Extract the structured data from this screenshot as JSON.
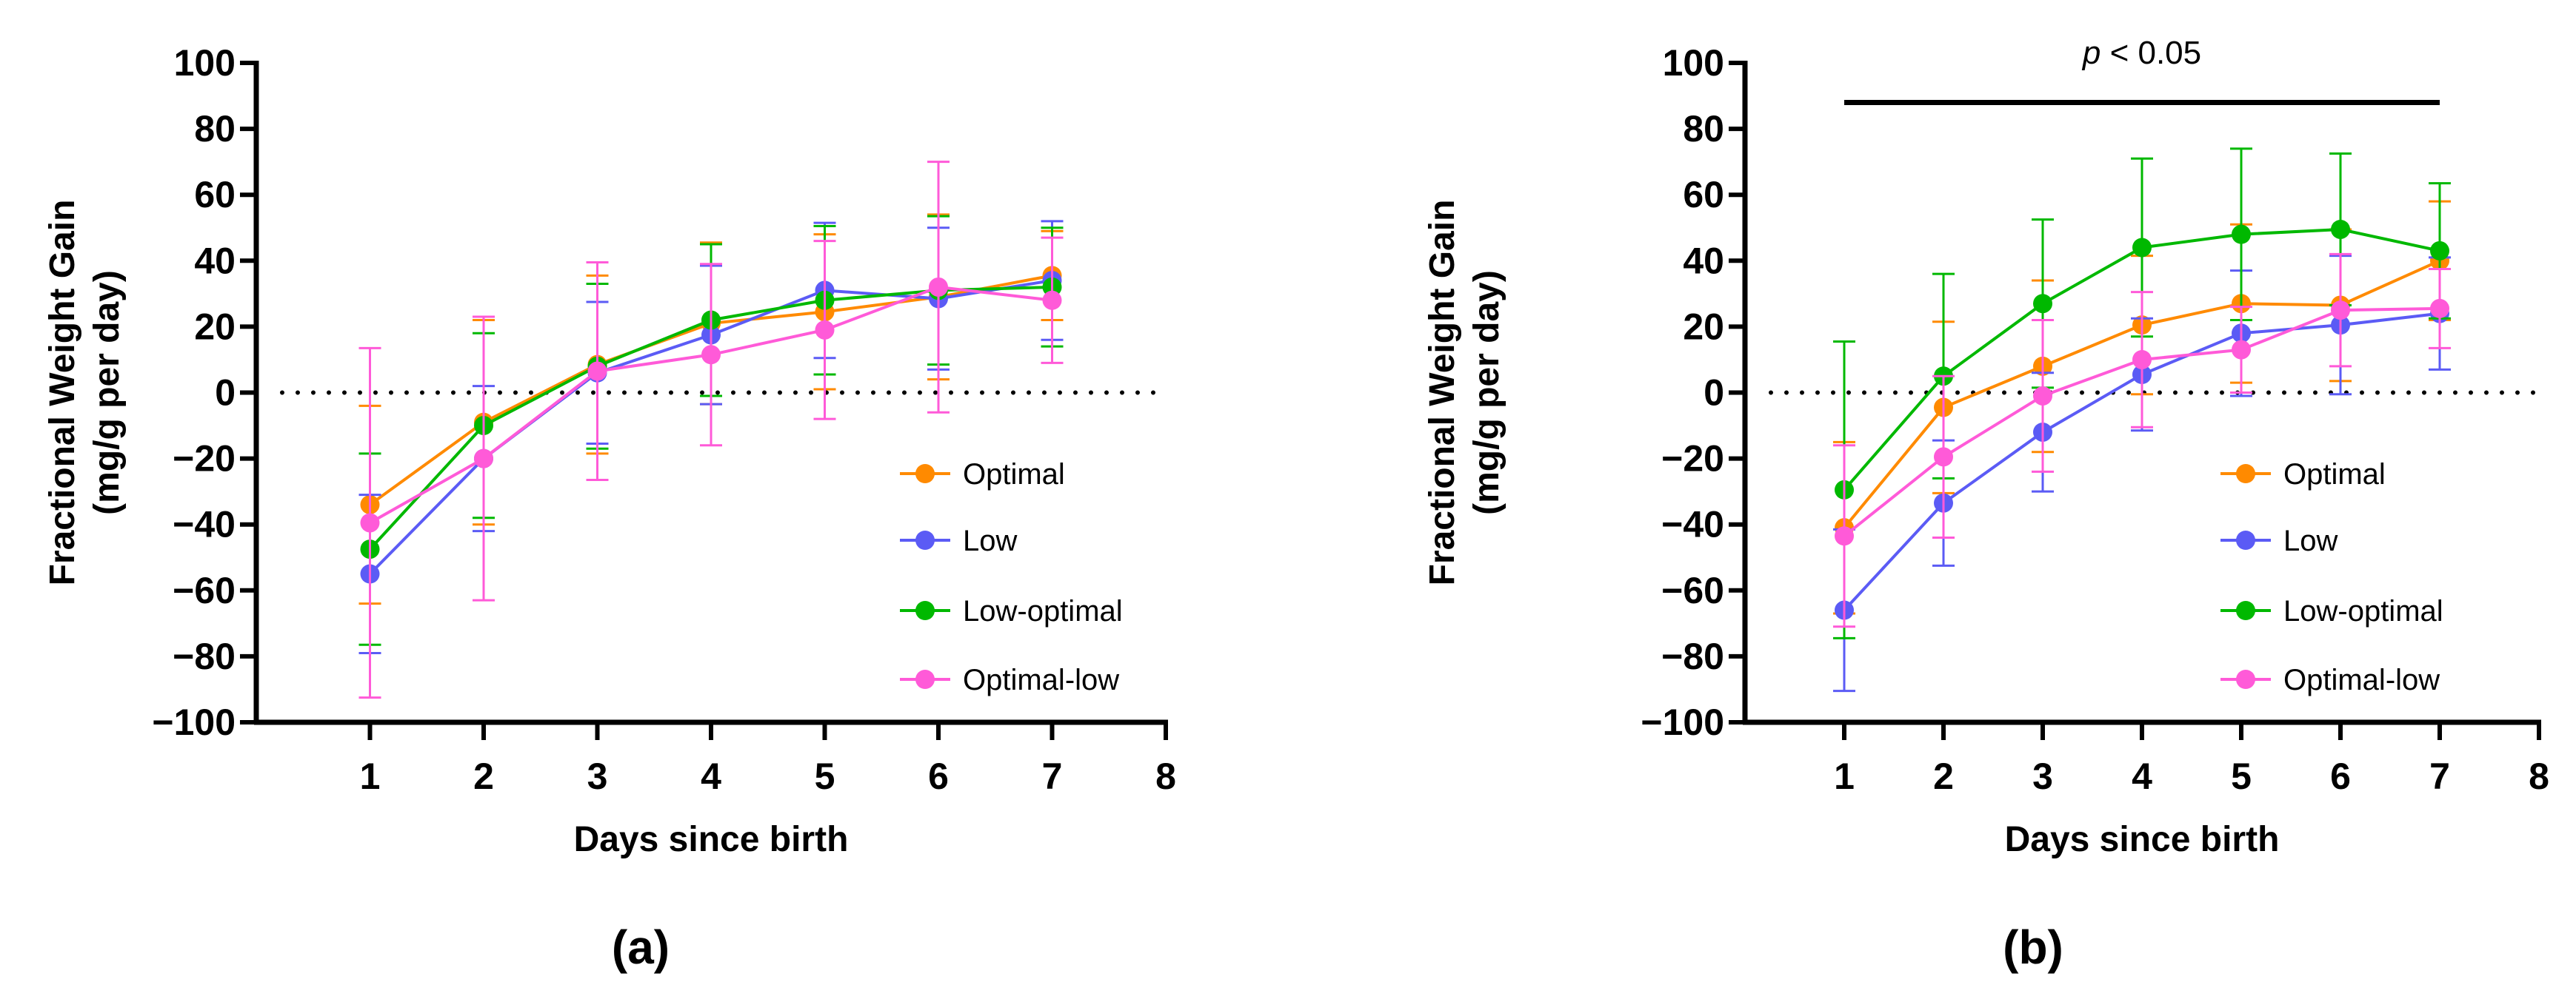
{
  "chart_data": [
    {
      "type": "line",
      "panel_label": "(a)",
      "xlabel": "Days since birth",
      "ylabel_line1": "Fractional Weight Gain",
      "ylabel_line2": "(mg/g per day)",
      "xlim": [
        0,
        8
      ],
      "ylim": [
        -100,
        100
      ],
      "xticks": [
        "1",
        "2",
        "3",
        "4",
        "5",
        "6",
        "7",
        "8"
      ],
      "yticks": [
        "100",
        "80",
        "60",
        "40",
        "20",
        "0",
        "−20",
        "−40",
        "−60",
        "−80",
        "−100"
      ],
      "reference_line": 0,
      "legend_position": "bottom-right",
      "x": [
        1,
        2,
        3,
        4,
        5,
        6,
        7
      ],
      "series": [
        {
          "name": "Optimal",
          "color": "#FF8A00",
          "values": [
            -34,
            -9,
            8.5,
            21,
            24.5,
            29,
            35.5
          ],
          "error": [
            30,
            31,
            27,
            24.5,
            23.5,
            25,
            13.5
          ]
        },
        {
          "name": "Low",
          "color": "#5B5BF5",
          "values": [
            -55,
            -20,
            6,
            17.5,
            31,
            28.5,
            34
          ],
          "error": [
            24,
            22,
            21.5,
            21,
            20.5,
            21.5,
            18
          ]
        },
        {
          "name": "Low-optimal",
          "color": "#00B800",
          "values": [
            -47.5,
            -10,
            8,
            22,
            28,
            31,
            32
          ],
          "error": [
            29,
            28,
            25,
            23,
            22.5,
            22.5,
            18
          ]
        },
        {
          "name": "Optimal-low",
          "color": "#FF5AD8",
          "values": [
            -39.5,
            -20,
            6.5,
            11.5,
            19,
            32,
            28
          ],
          "error": [
            53,
            43,
            33,
            27.5,
            27,
            38,
            19
          ]
        }
      ]
    },
    {
      "type": "line",
      "panel_label": "(b)",
      "annotation": {
        "p_italic": "p",
        "text": " < 0.05",
        "from_x": 1,
        "to_x": 7,
        "y": 88
      },
      "xlabel": "Days since birth",
      "ylabel_line1": "Fractional Weight Gain",
      "ylabel_line2": "(mg/g per day)",
      "xlim": [
        0,
        8
      ],
      "ylim": [
        -100,
        100
      ],
      "xticks": [
        "1",
        "2",
        "3",
        "4",
        "5",
        "6",
        "7",
        "8"
      ],
      "yticks": [
        "100",
        "80",
        "60",
        "40",
        "20",
        "0",
        "−20",
        "−40",
        "−60",
        "−80",
        "−100"
      ],
      "reference_line": 0,
      "legend_position": "bottom-right",
      "x": [
        1,
        2,
        3,
        4,
        5,
        6,
        7
      ],
      "series": [
        {
          "name": "Optimal",
          "color": "#FF8A00",
          "values": [
            -41,
            -4.5,
            8,
            20.5,
            27,
            26.5,
            40
          ],
          "error": [
            26,
            26,
            26,
            21,
            24,
            23,
            18
          ]
        },
        {
          "name": "Low",
          "color": "#5B5BF5",
          "values": [
            -66,
            -33.5,
            -12,
            5.5,
            18,
            20.5,
            24
          ],
          "error": [
            24.5,
            19,
            18,
            17,
            19,
            21,
            17
          ]
        },
        {
          "name": "Low-optimal",
          "color": "#00B800",
          "values": [
            -29.5,
            5,
            27,
            44,
            48,
            49.5,
            43
          ],
          "error": [
            45,
            31,
            25.5,
            27,
            26,
            23,
            20.5
          ]
        },
        {
          "name": "Optimal-low",
          "color": "#FF5AD8",
          "values": [
            -43.5,
            -19.5,
            -1,
            10,
            13,
            25,
            25.5
          ],
          "error": [
            27.5,
            24.5,
            23,
            20.5,
            13,
            17,
            12
          ]
        }
      ]
    }
  ]
}
